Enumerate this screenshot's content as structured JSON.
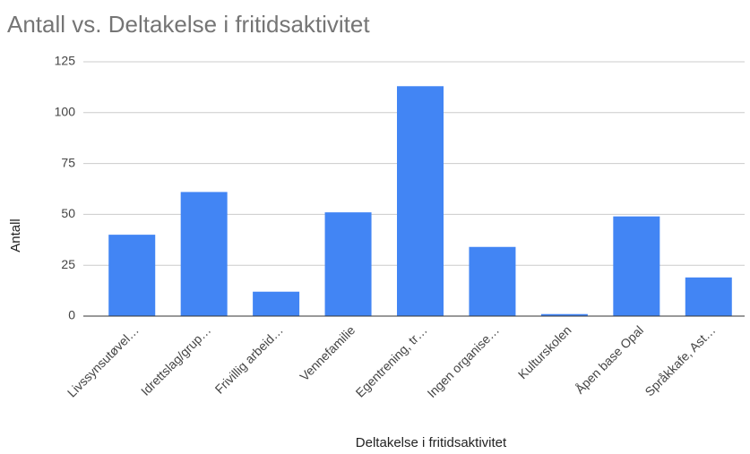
{
  "chart_data": {
    "type": "bar",
    "title": "Antall vs. Deltakelse i fritidsaktivitet",
    "x_label": "Deltakelse i fritidsaktivitet",
    "y_label": "Antall",
    "categories": [
      "Livssynsutøvel…",
      "Idrettslag/grup…",
      "Frivillig arbeid…",
      "Vennefamilie",
      "Egentrening, tr…",
      "Ingen organise…",
      "Kulturskolen",
      "Åpen base Opal",
      "Språkkafe, Ast…"
    ],
    "values": [
      40,
      61,
      12,
      51,
      113,
      34,
      1,
      49,
      19
    ],
    "color": "#4285f4",
    "ylim": [
      0,
      125
    ],
    "yticks": [
      0,
      25,
      50,
      75,
      100,
      125
    ],
    "grid": true
  }
}
